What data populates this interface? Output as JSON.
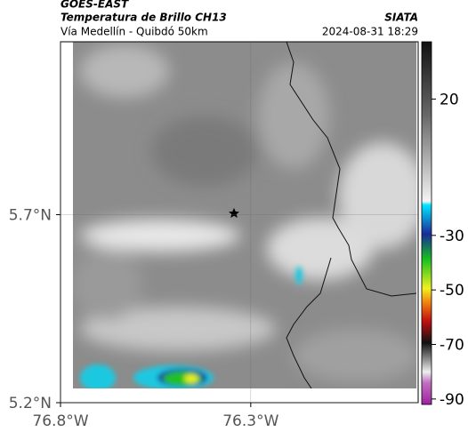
{
  "header": {
    "title": "GOES-EAST",
    "subtitle": "Temperatura de Brillo CH13",
    "route": "Vía Medellín - Quibdó 50km",
    "source": "SIATA",
    "datetime": "2024-08-31 18:29"
  },
  "map": {
    "lat_lim": [
      5.2,
      6.16
    ],
    "lon_lim": [
      -76.8,
      -75.86
    ],
    "lat_ticks": [
      {
        "value": 5.7,
        "label": "5.7°N"
      },
      {
        "value": 5.2,
        "label": "5.2°N"
      }
    ],
    "lon_ticks": [
      {
        "value": -76.8,
        "label": "76.8°W"
      },
      {
        "value": -76.3,
        "label": "76.3°W"
      }
    ]
  },
  "colorbar": {
    "lim": [
      -92,
      41
    ],
    "ticks": [
      20,
      -30,
      -50,
      -70,
      -90
    ]
  }
}
